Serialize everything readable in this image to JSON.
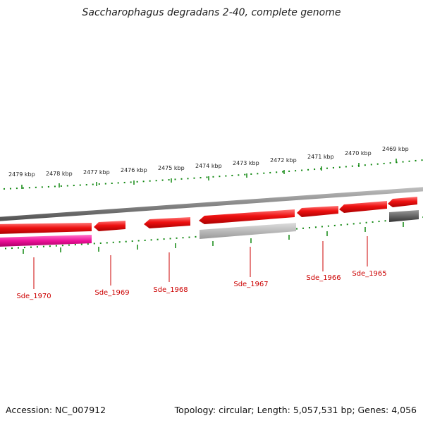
{
  "title": "Saccharophagus degradans 2-40, complete genome",
  "footer": {
    "accession": "Accession: NC_007912",
    "summary": "Topology: circular; Length: 5,057,531 bp; Genes: 4,056"
  },
  "kbp_labels": [
    "2479 kbp",
    "2478 kbp",
    "2477 kbp",
    "2476 kbp",
    "2475 kbp",
    "2474 kbp",
    "2473 kbp",
    "2472 kbp",
    "2471 kbp",
    "2470 kbp",
    "2469 kbp"
  ],
  "gene_labels": [
    "Sde_1970",
    "Sde_1969",
    "Sde_1968",
    "Sde_1967",
    "Sde_1966",
    "Sde_1965"
  ],
  "colors": {
    "gene_red": "#ee1111",
    "gene_magenta": "#ee1199",
    "gene_light_gray": "#bbbbbb",
    "gene_dark_gray": "#666666",
    "backbone": "#888888",
    "tick_green": "#118811",
    "label_red": "#cc0000"
  }
}
